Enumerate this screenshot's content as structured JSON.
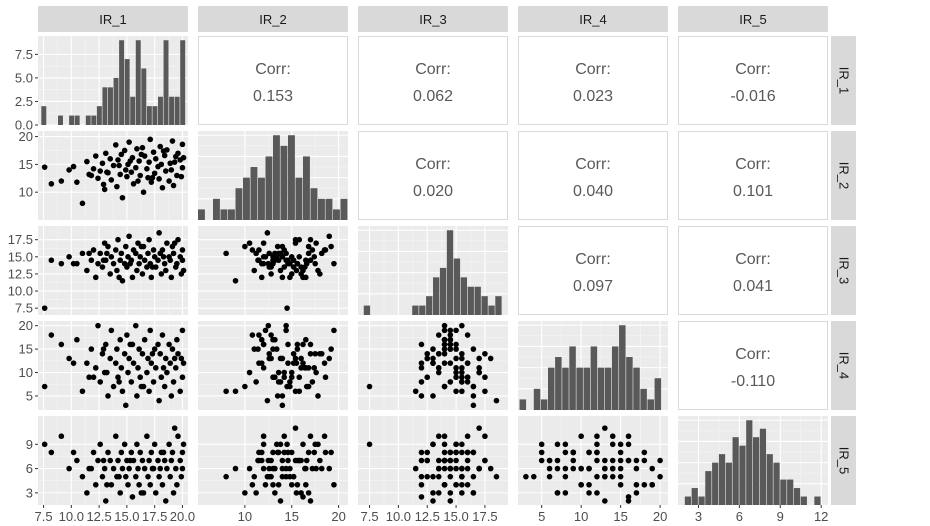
{
  "chart_data": {
    "type": "scatter-matrix",
    "variables": [
      "IR_1",
      "IR_2",
      "IR_3",
      "IR_4",
      "IR_5"
    ],
    "corr_label": "Corr:",
    "correlations": [
      {
        "row": "IR_1",
        "col": "IR_2",
        "value": "0.153"
      },
      {
        "row": "IR_1",
        "col": "IR_3",
        "value": "0.062"
      },
      {
        "row": "IR_1",
        "col": "IR_4",
        "value": "0.023"
      },
      {
        "row": "IR_1",
        "col": "IR_5",
        "value": "-0.016"
      },
      {
        "row": "IR_2",
        "col": "IR_3",
        "value": "0.020"
      },
      {
        "row": "IR_2",
        "col": "IR_4",
        "value": "0.040"
      },
      {
        "row": "IR_2",
        "col": "IR_5",
        "value": "0.101"
      },
      {
        "row": "IR_3",
        "col": "IR_4",
        "value": "0.097"
      },
      {
        "row": "IR_3",
        "col": "IR_5",
        "value": "0.041"
      },
      {
        "row": "IR_4",
        "col": "IR_5",
        "value": "-0.110"
      }
    ],
    "x_ticks": [
      {
        "values": [
          7.5,
          10.0,
          12.5,
          15.0,
          17.5,
          20.0
        ],
        "labels": [
          "7.5",
          "10.0",
          "12.5",
          "15.0",
          "17.5",
          "20.0"
        ]
      },
      {
        "values": [
          10,
          15,
          20
        ],
        "labels": [
          "10",
          "15",
          "20"
        ]
      },
      {
        "values": [
          7.5,
          10.0,
          12.5,
          15.0,
          17.5
        ],
        "labels": [
          "7.5",
          "10.0",
          "12.5",
          "15.0",
          "17.5"
        ]
      },
      {
        "values": [
          5,
          10,
          15,
          20
        ],
        "labels": [
          "5",
          "10",
          "15",
          "20"
        ]
      },
      {
        "values": [
          3,
          6,
          9,
          12
        ],
        "labels": [
          "3",
          "6",
          "9",
          "12"
        ]
      }
    ],
    "y_ticks": [
      {
        "values": [
          0.0,
          2.5,
          5.0,
          7.5
        ],
        "labels": [
          "0.0",
          "2.5",
          "5.0",
          "7.5"
        ]
      },
      {
        "values": [
          10,
          15,
          20
        ],
        "labels": [
          "10",
          "15",
          "20"
        ]
      },
      {
        "values": [
          7.5,
          10.0,
          12.5,
          15.0,
          17.5
        ],
        "labels": [
          "7.5",
          "10.0",
          "12.5",
          "15.0",
          "17.5"
        ]
      },
      {
        "values": [
          5,
          10,
          15,
          20
        ],
        "labels": [
          "5",
          "10",
          "15",
          "20"
        ]
      },
      {
        "values": [
          3,
          6,
          9
        ],
        "labels": [
          "3",
          "6",
          "9"
        ]
      }
    ],
    "axis_ranges": [
      [
        7,
        20.5
      ],
      [
        5,
        21
      ],
      [
        6.5,
        19.5
      ],
      [
        2,
        21
      ],
      [
        1.5,
        12.5
      ]
    ],
    "histograms": [
      {
        "variable": "IR_1",
        "x_start": 7.3,
        "bin_width": 0.5,
        "counts": [
          2,
          0,
          0,
          1,
          0,
          1,
          1,
          0,
          1,
          1,
          2,
          4,
          4,
          5,
          9,
          7,
          3,
          9,
          6,
          2,
          2,
          3,
          9,
          3,
          3,
          9
        ]
      },
      {
        "variable": "IR_2",
        "x_start": 5.0,
        "bin_width": 0.8,
        "counts": [
          1,
          0,
          2,
          1,
          1,
          3,
          4,
          5,
          4,
          6,
          8,
          7,
          8,
          4,
          6,
          3,
          2,
          2,
          1,
          2
        ]
      },
      {
        "variable": "IR_3",
        "x_start": 7.0,
        "bin_width": 0.6,
        "counts": [
          1,
          0,
          0,
          0,
          0,
          0,
          0,
          1,
          1,
          2,
          4,
          5,
          9,
          6,
          4,
          3,
          3,
          2,
          1,
          2
        ]
      },
      {
        "variable": "IR_4",
        "x_start": 2.2,
        "bin_width": 0.9,
        "counts": [
          1,
          0,
          2,
          1,
          4,
          5,
          4,
          6,
          4,
          4,
          6,
          4,
          4,
          6,
          8,
          5,
          4,
          2,
          1,
          3
        ]
      },
      {
        "variable": "IR_5",
        "x_start": 2.0,
        "bin_width": 0.5,
        "counts": [
          1,
          2,
          1,
          4,
          5,
          6,
          5,
          8,
          7,
          10,
          8,
          9,
          6,
          5,
          3,
          3,
          2,
          1,
          0,
          1
        ]
      }
    ],
    "points": {
      "IR_1": [
        7.6,
        8.2,
        9.1,
        9.8,
        10.5,
        11.0,
        11.4,
        11.8,
        12.0,
        12.2,
        12.4,
        12.6,
        12.8,
        13.0,
        13.1,
        13.3,
        13.5,
        13.6,
        13.8,
        14.0,
        14.1,
        14.2,
        14.4,
        14.5,
        14.6,
        14.8,
        14.9,
        15.0,
        15.1,
        15.2,
        15.4,
        15.5,
        15.6,
        15.8,
        15.9,
        16.0,
        16.1,
        16.2,
        16.4,
        16.5,
        16.6,
        16.8,
        16.9,
        17.0,
        17.1,
        17.2,
        17.4,
        17.5,
        17.6,
        17.8,
        17.9,
        18.0,
        18.1,
        18.2,
        18.4,
        18.5,
        18.6,
        18.8,
        18.9,
        19.0,
        19.1,
        19.2,
        19.4,
        19.5,
        19.6,
        19.8,
        19.9,
        20.0,
        20.0,
        20.1,
        13.2,
        15.3,
        16.3,
        17.3,
        18.3,
        14.3,
        12.9,
        19.3,
        11.6,
        10.2
      ],
      "IR_2": [
        14.5,
        11.5,
        12.0,
        14.0,
        11.8,
        8.0,
        15.5,
        13.0,
        14.2,
        16.5,
        12.5,
        13.8,
        15.2,
        10.5,
        17.0,
        13.5,
        16.0,
        12.2,
        14.8,
        18.5,
        11.0,
        15.8,
        13.2,
        16.8,
        9.0,
        17.5,
        14.0,
        12.8,
        15.0,
        19.0,
        13.6,
        16.2,
        11.5,
        14.4,
        17.8,
        12.0,
        15.6,
        13.0,
        18.0,
        10.0,
        16.5,
        14.2,
        12.6,
        15.4,
        19.5,
        11.8,
        17.2,
        13.4,
        16.0,
        14.6,
        12.4,
        18.2,
        15.0,
        10.8,
        16.6,
        13.8,
        17.6,
        12.0,
        15.2,
        14.0,
        19.2,
        11.2,
        16.4,
        13.0,
        17.0,
        15.8,
        12.8,
        18.6,
        14.4,
        16.2,
        13.6,
        15.6,
        16.8,
        12.6,
        17.4,
        14.8,
        11.4,
        15.4,
        13.2,
        14.6
      ],
      "IR_3": [
        7.5,
        14.5,
        14.0,
        15.0,
        14.0,
        15.5,
        13.0,
        14.5,
        16.0,
        12.0,
        14.0,
        15.5,
        13.5,
        17.0,
        14.5,
        16.5,
        12.5,
        15.0,
        14.0,
        16.0,
        13.0,
        17.5,
        14.5,
        15.5,
        11.5,
        14.0,
        16.5,
        13.5,
        15.0,
        18.0,
        14.5,
        12.0,
        16.0,
        15.5,
        13.0,
        17.0,
        14.0,
        15.0,
        12.5,
        16.5,
        14.5,
        13.5,
        15.5,
        17.5,
        14.0,
        12.0,
        16.0,
        15.0,
        13.5,
        14.5,
        18.5,
        15.5,
        12.5,
        16.0,
        14.0,
        13.0,
        17.0,
        15.0,
        14.5,
        12.0,
        16.5,
        15.5,
        13.5,
        14.0,
        17.5,
        15.0,
        12.5,
        16.0,
        14.5,
        13.0,
        15.5,
        14.0,
        16.5,
        13.5,
        15.0,
        12.0,
        14.5,
        17.0,
        15.5,
        14.0
      ],
      "IR_4": [
        7.0,
        18.0,
        16.0,
        13.0,
        17.0,
        6.0,
        12.0,
        15.0,
        9.0,
        11.0,
        20.0,
        8.0,
        14.0,
        10.0,
        16.0,
        5.0,
        13.0,
        19.0,
        7.0,
        12.0,
        15.0,
        9.0,
        17.0,
        11.0,
        6.0,
        14.0,
        3.0,
        18.0,
        10.0,
        13.0,
        8.0,
        16.0,
        12.0,
        20.0,
        5.0,
        11.0,
        15.0,
        9.0,
        14.0,
        7.0,
        17.0,
        10.0,
        13.0,
        6.0,
        19.0,
        12.0,
        8.0,
        15.0,
        11.0,
        16.0,
        4.0,
        14.0,
        9.0,
        18.0,
        7.0,
        13.0,
        10.0,
        16.0,
        12.0,
        5.0,
        15.0,
        8.0,
        11.0,
        17.0,
        14.0,
        6.0,
        13.0,
        9.0,
        19.0,
        12.0,
        10.0,
        16.0,
        7.0,
        14.0,
        11.0,
        8.0,
        15.0,
        13.0,
        9.0,
        12.0
      ],
      "IR_5": [
        9.0,
        8.0,
        10.0,
        6.0,
        7.0,
        5.0,
        3.0,
        6.0,
        8.0,
        4.0,
        7.0,
        9.0,
        5.0,
        6.0,
        2.0,
        8.0,
        7.0,
        4.0,
        6.0,
        10.0,
        5.0,
        7.0,
        3.0,
        8.0,
        6.0,
        9.0,
        5.0,
        7.0,
        4.0,
        6.0,
        8.0,
        2.5,
        7.0,
        5.0,
        9.0,
        6.0,
        4.0,
        8.0,
        7.0,
        3.0,
        6.0,
        10.0,
        5.0,
        7.0,
        4.0,
        8.0,
        6.0,
        9.0,
        3.0,
        7.0,
        5.0,
        6.0,
        8.0,
        4.0,
        7.0,
        2.0,
        6.0,
        9.0,
        5.0,
        7.0,
        8.0,
        3.0,
        6.0,
        4.0,
        10.0,
        7.0,
        5.0,
        8.0,
        6.0,
        9.0,
        4.0,
        7.0,
        3.0,
        6.0,
        8.0,
        5.0,
        7.0,
        11.0,
        6.0,
        8.0
      ]
    }
  }
}
